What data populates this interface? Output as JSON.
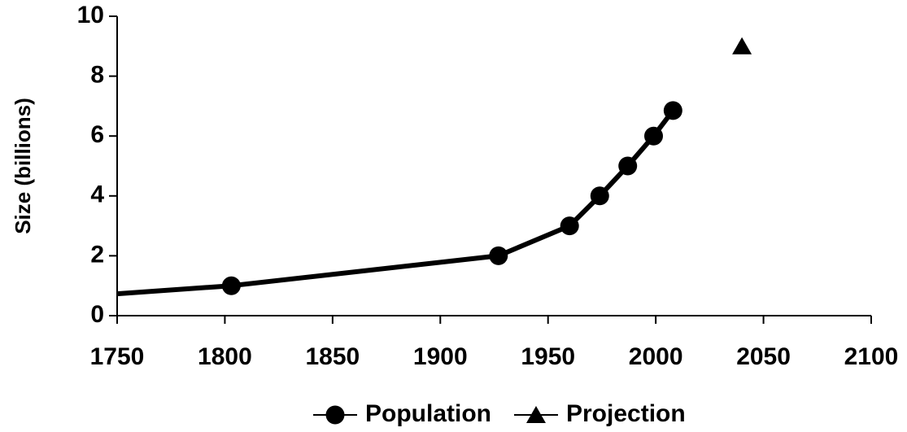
{
  "chart_data": {
    "type": "line",
    "y_label": "Size (billions)",
    "series": [
      {
        "name": "Population",
        "color": "#000000",
        "marker": "circle",
        "line": true,
        "x": [
          1740,
          1803,
          1927,
          1960,
          1974,
          1987,
          1999,
          2008
        ],
        "values": [
          0.68,
          1.0,
          2.0,
          3.0,
          4.0,
          5.0,
          6.0,
          6.85
        ]
      },
      {
        "name": "Projection",
        "color": "#000000",
        "marker": "triangle",
        "line": false,
        "x": [
          2040
        ],
        "values": [
          9.0
        ]
      }
    ],
    "xlim": [
      1750,
      2100
    ],
    "xticks": [
      1750,
      1800,
      1850,
      1900,
      1950,
      2000,
      2050,
      2100
    ],
    "ylim": [
      0,
      10
    ],
    "yticks": [
      0,
      2,
      4,
      6,
      8,
      10
    ],
    "grid": false,
    "legend": "bottom"
  }
}
